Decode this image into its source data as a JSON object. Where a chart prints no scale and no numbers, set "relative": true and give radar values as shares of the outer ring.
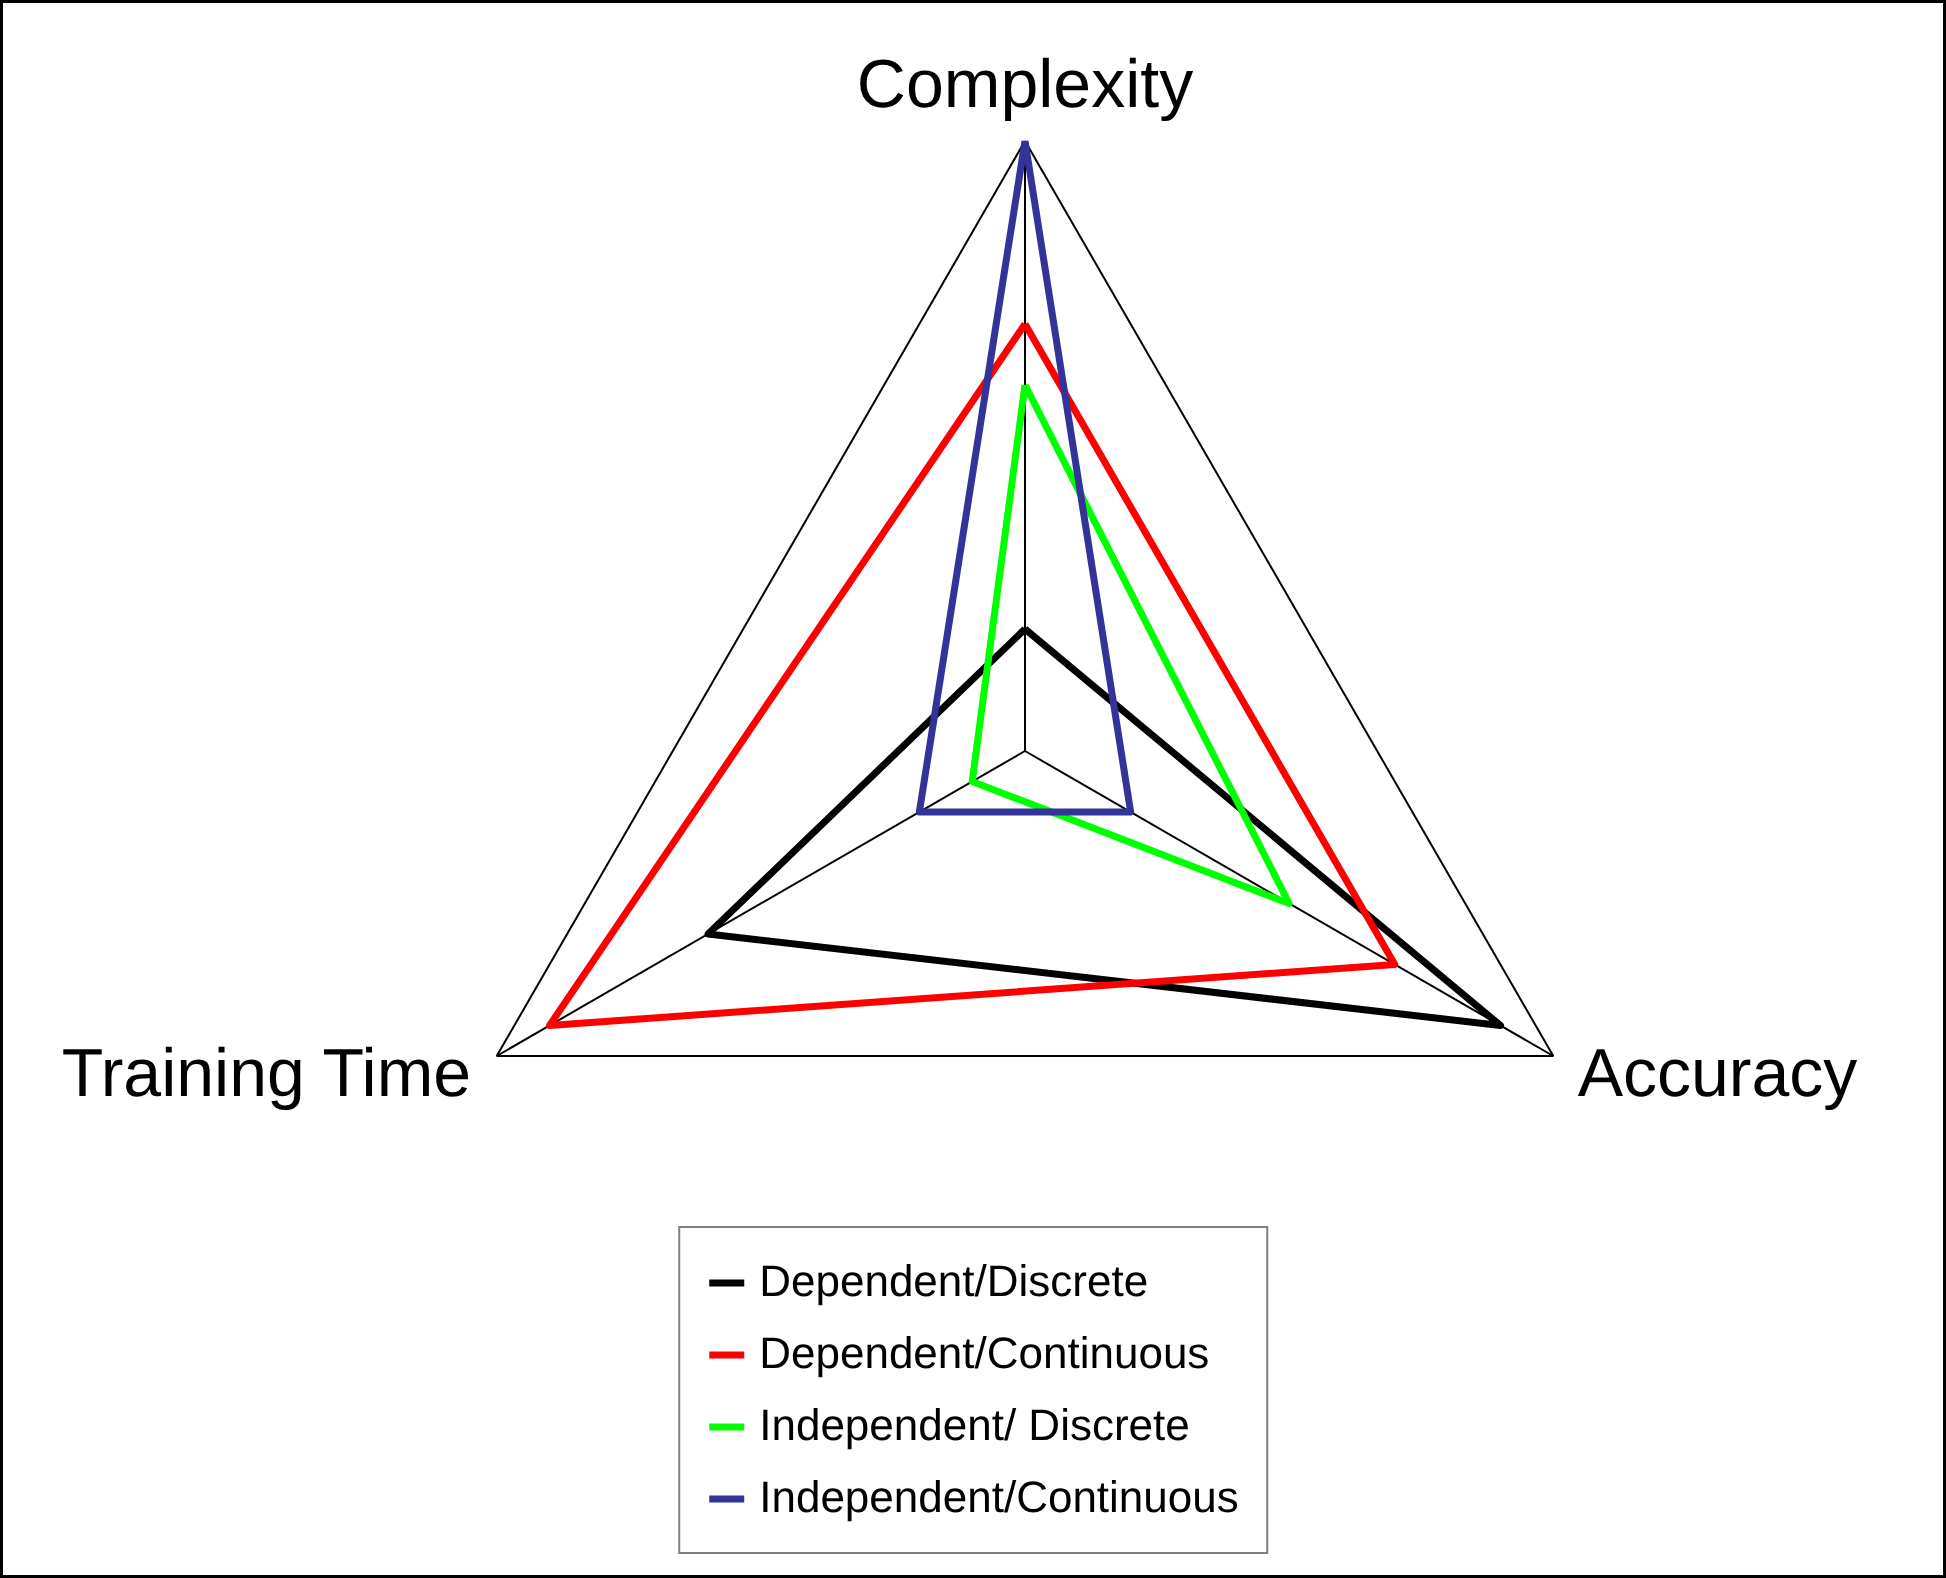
{
  "chart_data": {
    "type": "radar",
    "relative": true,
    "categories": [
      "Complexity",
      "Accuracy",
      "Training Time"
    ],
    "series": [
      {
        "name": "Dependent/Discrete",
        "color": "#000000",
        "values": [
          0.2,
          0.9,
          0.6
        ]
      },
      {
        "name": "Dependent/Continuous",
        "color": "#ff0000",
        "values": [
          0.7,
          0.7,
          0.9
        ]
      },
      {
        "name": "Independent/ Discrete",
        "color": "#00ff00",
        "values": [
          0.6,
          0.5,
          0.1
        ]
      },
      {
        "name": "Independent/Continuous",
        "color": "#333399",
        "values": [
          1.0,
          0.2,
          0.2
        ]
      }
    ],
    "legend": "bottom"
  }
}
